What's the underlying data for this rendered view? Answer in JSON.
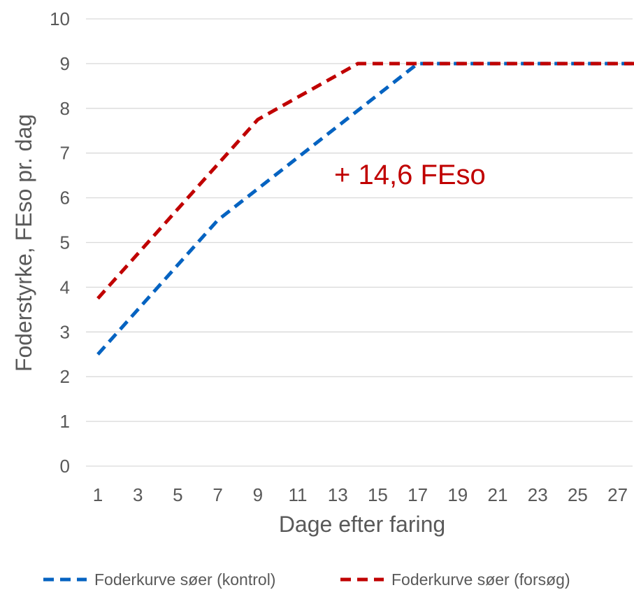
{
  "chart_data": {
    "type": "line",
    "title": "",
    "xlabel": "Dage efter faring",
    "ylabel": "Foderstyrke, FEso pr. dag",
    "ylim": [
      0,
      10
    ],
    "yticks": [
      "0",
      "1",
      "2",
      "3",
      "4",
      "5",
      "6",
      "7",
      "8",
      "9",
      "10"
    ],
    "xlim": [
      1,
      28
    ],
    "xticks": [
      "1",
      "3",
      "5",
      "7",
      "9",
      "11",
      "13",
      "15",
      "17",
      "19",
      "21",
      "23",
      "25",
      "27"
    ],
    "grid": true,
    "legend_position": "bottom",
    "annotation": "+ 14,6 FEso",
    "annotation_color": "#c00000",
    "series": [
      {
        "name": "Foderkurve søer (kontrol)",
        "color": "#0563c1",
        "x": [
          1,
          7,
          17,
          28
        ],
        "y": [
          2.5,
          5.5,
          9.0,
          9.0
        ]
      },
      {
        "name": "Foderkurve søer (forsøg)",
        "color": "#c00000",
        "x": [
          1,
          9,
          14,
          28
        ],
        "y": [
          3.75,
          7.75,
          9.0,
          9.0
        ]
      }
    ]
  }
}
